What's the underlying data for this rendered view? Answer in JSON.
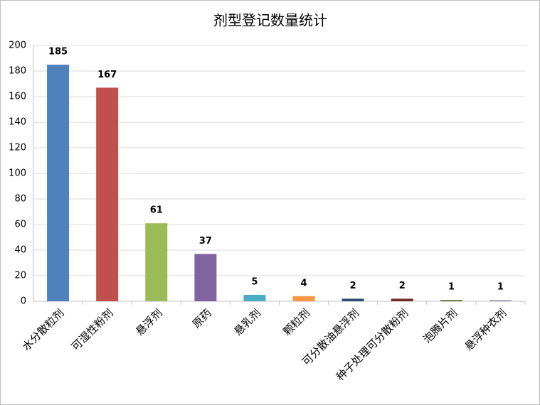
{
  "chart_data": {
    "type": "bar",
    "title": "剂型登记数量统计",
    "categories": [
      "水分散粒剂",
      "可湿性粉剂",
      "悬浮剂",
      "原药",
      "悬乳剂",
      "颗粒剂",
      "可分散油悬浮剂",
      "种子处理可分散粉剂",
      "泡腾片剂",
      "悬浮种衣剂"
    ],
    "values": [
      185,
      167,
      61,
      37,
      5,
      4,
      2,
      2,
      1,
      1
    ],
    "colors": [
      "#4f81bd",
      "#c0504d",
      "#9bbb59",
      "#8064a2",
      "#4bacc6",
      "#f79646",
      "#2c4d75",
      "#772c2a",
      "#5f7530",
      "#a99bbd"
    ],
    "ylim": [
      0,
      200
    ],
    "yticks": [
      0,
      20,
      40,
      60,
      80,
      100,
      120,
      140,
      160,
      180,
      200
    ],
    "grid": true
  }
}
